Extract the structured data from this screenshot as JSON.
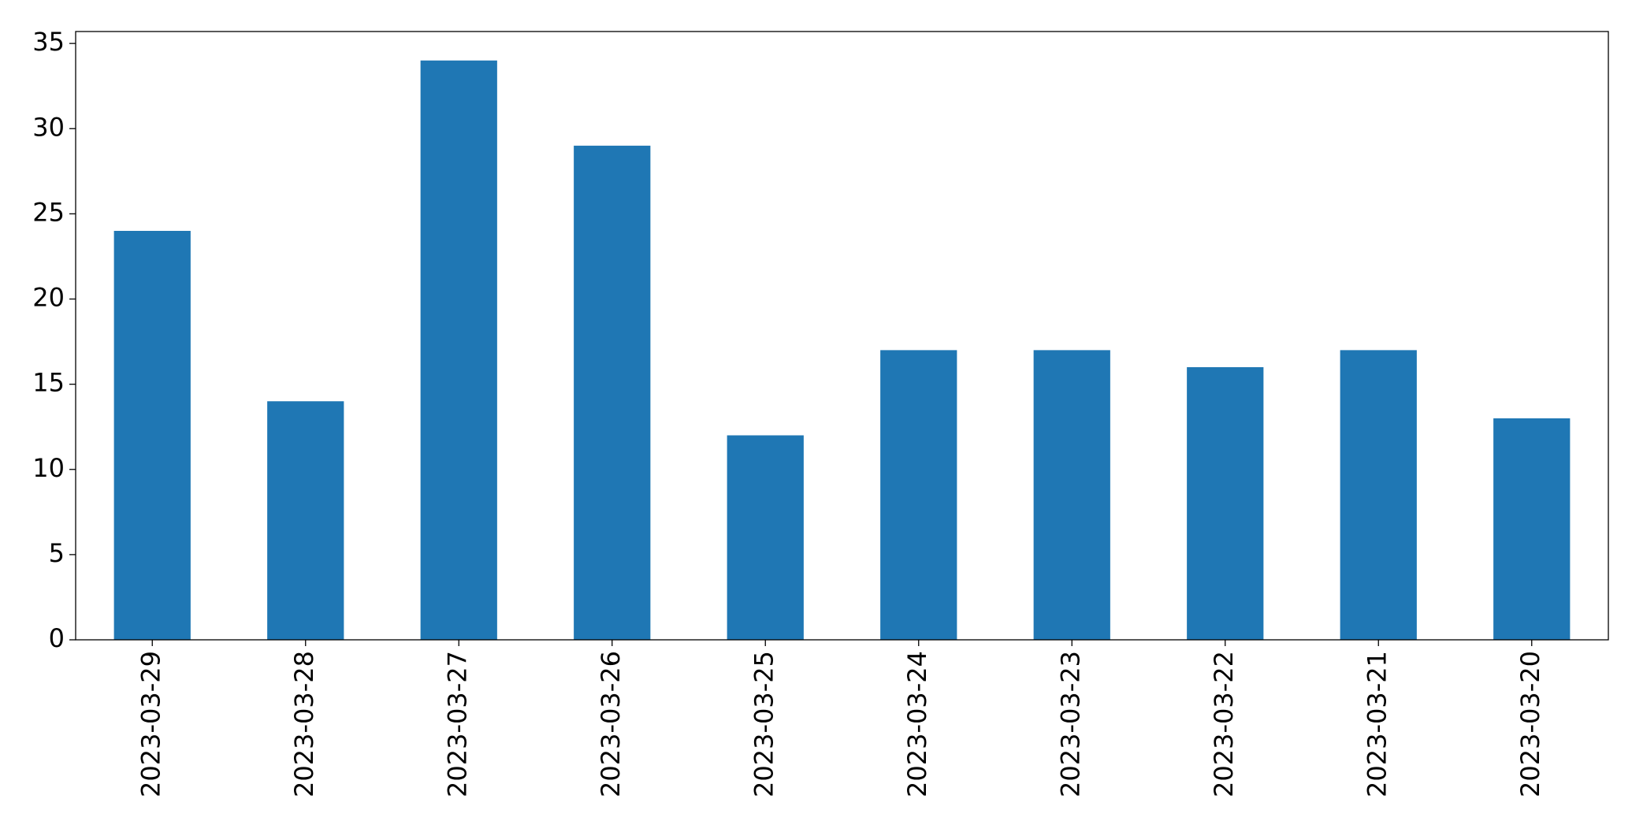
{
  "chart_data": {
    "type": "bar",
    "categories": [
      "2023-03-29",
      "2023-03-28",
      "2023-03-27",
      "2023-03-26",
      "2023-03-25",
      "2023-03-24",
      "2023-03-23",
      "2023-03-22",
      "2023-03-21",
      "2023-03-20"
    ],
    "values": [
      24,
      14,
      34,
      29,
      12,
      17,
      17,
      16,
      17,
      13
    ],
    "color": "#1f77b4",
    "ylim": [
      0,
      35.7
    ],
    "yticks": [
      0,
      5,
      10,
      15,
      20,
      25,
      30,
      35
    ],
    "grid": false
  }
}
